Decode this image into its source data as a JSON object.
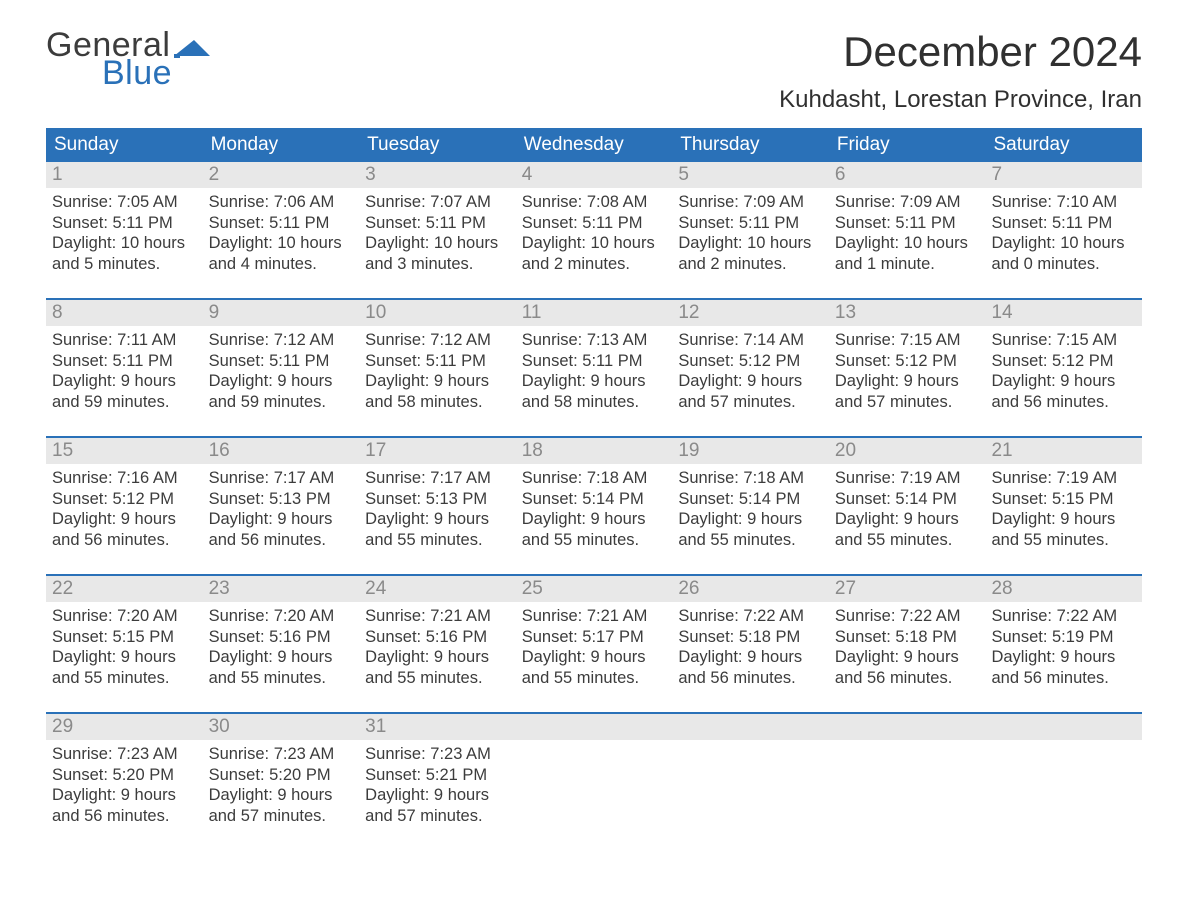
{
  "logo": {
    "text1": "General",
    "text2": "Blue"
  },
  "title": "December 2024",
  "location": "Kuhdasht, Lorestan Province, Iran",
  "colors": {
    "header_bg": "#2a71b8",
    "header_text": "#ffffff",
    "daynum_bg": "#e8e8e8",
    "daynum_text": "#8a8a8a",
    "body_text": "#3c3c3c",
    "page_bg": "#ffffff",
    "logo_blue": "#2a71b8"
  },
  "day_headers": [
    "Sunday",
    "Monday",
    "Tuesday",
    "Wednesday",
    "Thursday",
    "Friday",
    "Saturday"
  ],
  "weeks": [
    [
      {
        "n": "1",
        "sunrise": "Sunrise: 7:05 AM",
        "sunset": "Sunset: 5:11 PM",
        "daylight": "Daylight: 10 hours and 5 minutes."
      },
      {
        "n": "2",
        "sunrise": "Sunrise: 7:06 AM",
        "sunset": "Sunset: 5:11 PM",
        "daylight": "Daylight: 10 hours and 4 minutes."
      },
      {
        "n": "3",
        "sunrise": "Sunrise: 7:07 AM",
        "sunset": "Sunset: 5:11 PM",
        "daylight": "Daylight: 10 hours and 3 minutes."
      },
      {
        "n": "4",
        "sunrise": "Sunrise: 7:08 AM",
        "sunset": "Sunset: 5:11 PM",
        "daylight": "Daylight: 10 hours and 2 minutes."
      },
      {
        "n": "5",
        "sunrise": "Sunrise: 7:09 AM",
        "sunset": "Sunset: 5:11 PM",
        "daylight": "Daylight: 10 hours and 2 minutes."
      },
      {
        "n": "6",
        "sunrise": "Sunrise: 7:09 AM",
        "sunset": "Sunset: 5:11 PM",
        "daylight": "Daylight: 10 hours and 1 minute."
      },
      {
        "n": "7",
        "sunrise": "Sunrise: 7:10 AM",
        "sunset": "Sunset: 5:11 PM",
        "daylight": "Daylight: 10 hours and 0 minutes."
      }
    ],
    [
      {
        "n": "8",
        "sunrise": "Sunrise: 7:11 AM",
        "sunset": "Sunset: 5:11 PM",
        "daylight": "Daylight: 9 hours and 59 minutes."
      },
      {
        "n": "9",
        "sunrise": "Sunrise: 7:12 AM",
        "sunset": "Sunset: 5:11 PM",
        "daylight": "Daylight: 9 hours and 59 minutes."
      },
      {
        "n": "10",
        "sunrise": "Sunrise: 7:12 AM",
        "sunset": "Sunset: 5:11 PM",
        "daylight": "Daylight: 9 hours and 58 minutes."
      },
      {
        "n": "11",
        "sunrise": "Sunrise: 7:13 AM",
        "sunset": "Sunset: 5:11 PM",
        "daylight": "Daylight: 9 hours and 58 minutes."
      },
      {
        "n": "12",
        "sunrise": "Sunrise: 7:14 AM",
        "sunset": "Sunset: 5:12 PM",
        "daylight": "Daylight: 9 hours and 57 minutes."
      },
      {
        "n": "13",
        "sunrise": "Sunrise: 7:15 AM",
        "sunset": "Sunset: 5:12 PM",
        "daylight": "Daylight: 9 hours and 57 minutes."
      },
      {
        "n": "14",
        "sunrise": "Sunrise: 7:15 AM",
        "sunset": "Sunset: 5:12 PM",
        "daylight": "Daylight: 9 hours and 56 minutes."
      }
    ],
    [
      {
        "n": "15",
        "sunrise": "Sunrise: 7:16 AM",
        "sunset": "Sunset: 5:12 PM",
        "daylight": "Daylight: 9 hours and 56 minutes."
      },
      {
        "n": "16",
        "sunrise": "Sunrise: 7:17 AM",
        "sunset": "Sunset: 5:13 PM",
        "daylight": "Daylight: 9 hours and 56 minutes."
      },
      {
        "n": "17",
        "sunrise": "Sunrise: 7:17 AM",
        "sunset": "Sunset: 5:13 PM",
        "daylight": "Daylight: 9 hours and 55 minutes."
      },
      {
        "n": "18",
        "sunrise": "Sunrise: 7:18 AM",
        "sunset": "Sunset: 5:14 PM",
        "daylight": "Daylight: 9 hours and 55 minutes."
      },
      {
        "n": "19",
        "sunrise": "Sunrise: 7:18 AM",
        "sunset": "Sunset: 5:14 PM",
        "daylight": "Daylight: 9 hours and 55 minutes."
      },
      {
        "n": "20",
        "sunrise": "Sunrise: 7:19 AM",
        "sunset": "Sunset: 5:14 PM",
        "daylight": "Daylight: 9 hours and 55 minutes."
      },
      {
        "n": "21",
        "sunrise": "Sunrise: 7:19 AM",
        "sunset": "Sunset: 5:15 PM",
        "daylight": "Daylight: 9 hours and 55 minutes."
      }
    ],
    [
      {
        "n": "22",
        "sunrise": "Sunrise: 7:20 AM",
        "sunset": "Sunset: 5:15 PM",
        "daylight": "Daylight: 9 hours and 55 minutes."
      },
      {
        "n": "23",
        "sunrise": "Sunrise: 7:20 AM",
        "sunset": "Sunset: 5:16 PM",
        "daylight": "Daylight: 9 hours and 55 minutes."
      },
      {
        "n": "24",
        "sunrise": "Sunrise: 7:21 AM",
        "sunset": "Sunset: 5:16 PM",
        "daylight": "Daylight: 9 hours and 55 minutes."
      },
      {
        "n": "25",
        "sunrise": "Sunrise: 7:21 AM",
        "sunset": "Sunset: 5:17 PM",
        "daylight": "Daylight: 9 hours and 55 minutes."
      },
      {
        "n": "26",
        "sunrise": "Sunrise: 7:22 AM",
        "sunset": "Sunset: 5:18 PM",
        "daylight": "Daylight: 9 hours and 56 minutes."
      },
      {
        "n": "27",
        "sunrise": "Sunrise: 7:22 AM",
        "sunset": "Sunset: 5:18 PM",
        "daylight": "Daylight: 9 hours and 56 minutes."
      },
      {
        "n": "28",
        "sunrise": "Sunrise: 7:22 AM",
        "sunset": "Sunset: 5:19 PM",
        "daylight": "Daylight: 9 hours and 56 minutes."
      }
    ],
    [
      {
        "n": "29",
        "sunrise": "Sunrise: 7:23 AM",
        "sunset": "Sunset: 5:20 PM",
        "daylight": "Daylight: 9 hours and 56 minutes."
      },
      {
        "n": "30",
        "sunrise": "Sunrise: 7:23 AM",
        "sunset": "Sunset: 5:20 PM",
        "daylight": "Daylight: 9 hours and 57 minutes."
      },
      {
        "n": "31",
        "sunrise": "Sunrise: 7:23 AM",
        "sunset": "Sunset: 5:21 PM",
        "daylight": "Daylight: 9 hours and 57 minutes."
      },
      {
        "n": "",
        "sunrise": "",
        "sunset": "",
        "daylight": ""
      },
      {
        "n": "",
        "sunrise": "",
        "sunset": "",
        "daylight": ""
      },
      {
        "n": "",
        "sunrise": "",
        "sunset": "",
        "daylight": ""
      },
      {
        "n": "",
        "sunrise": "",
        "sunset": "",
        "daylight": ""
      }
    ]
  ]
}
